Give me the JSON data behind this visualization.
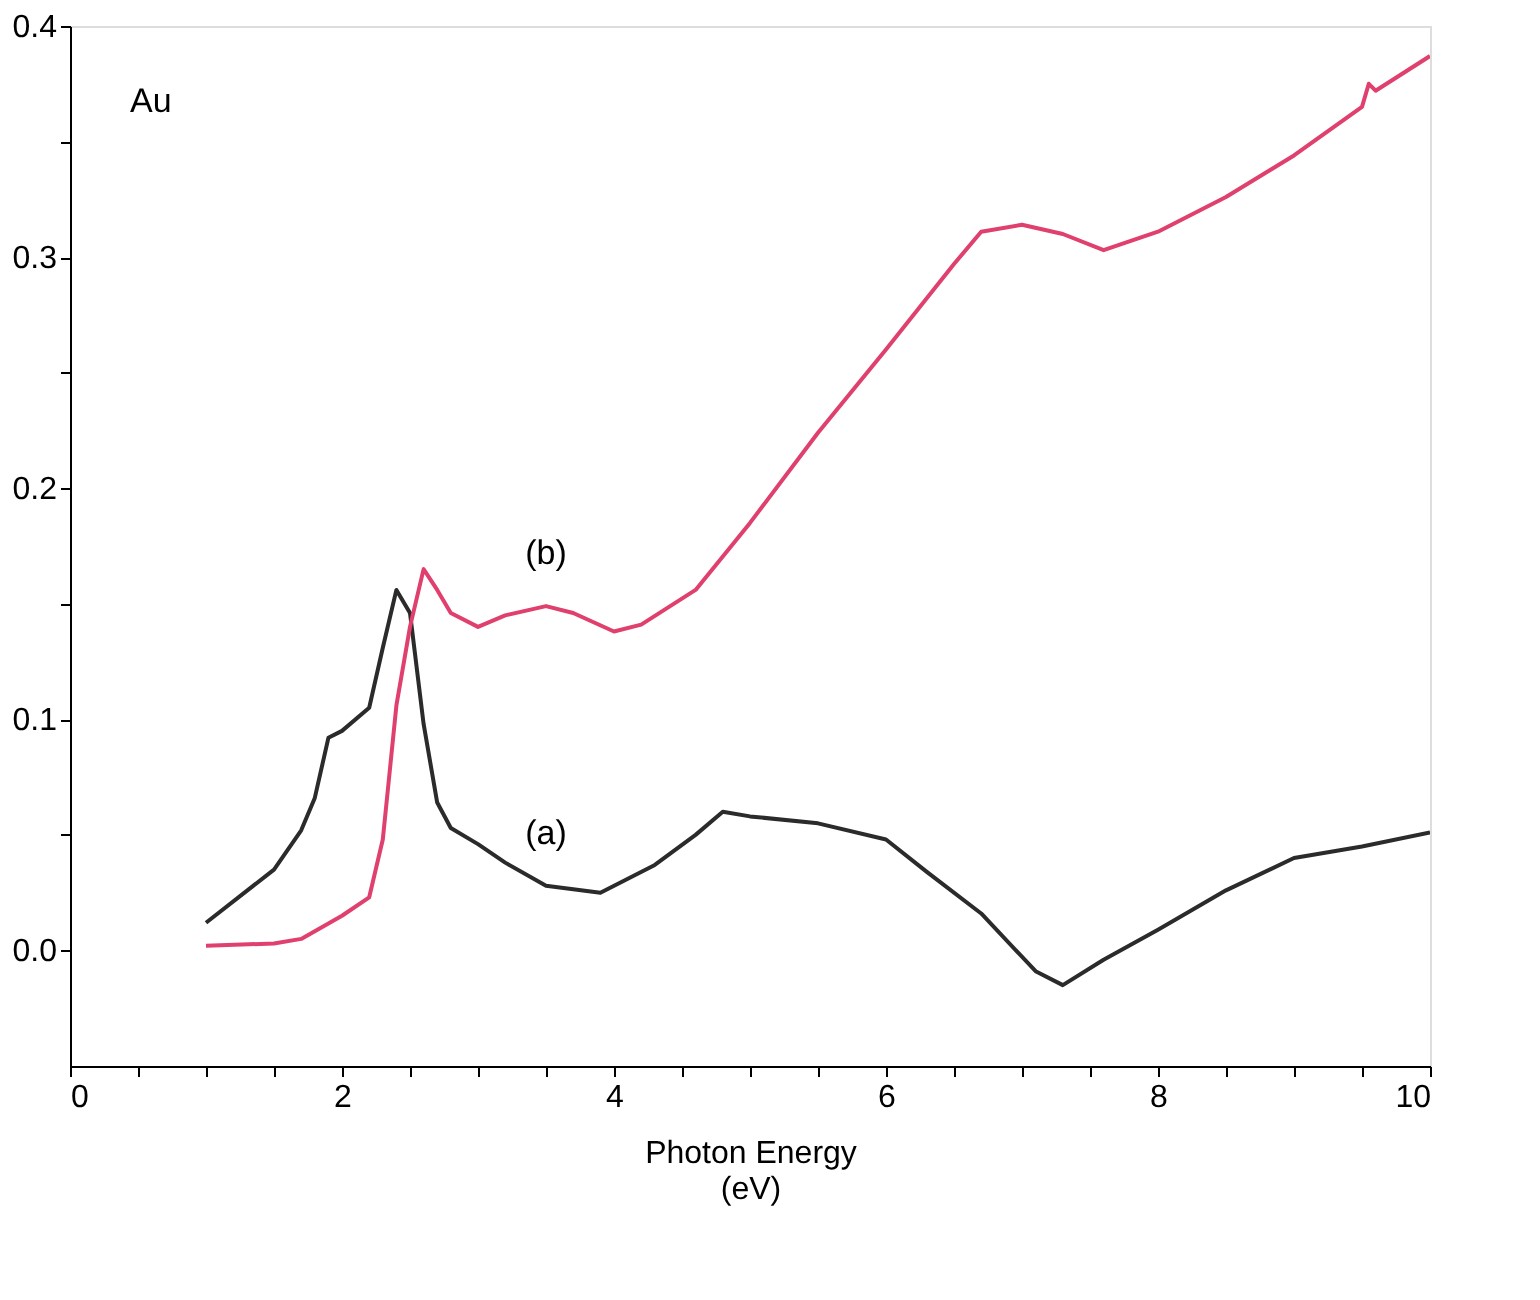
{
  "chart_data": {
    "type": "line",
    "xlabel": "Photon Energy\n(eV)",
    "xlim": [
      0,
      10
    ],
    "ylim": [
      -0.05,
      0.4
    ],
    "xticks": [
      0,
      {
        "value": 0.5,
        "label": null
      },
      {
        "value": 1,
        "label": null
      },
      {
        "value": 1.5,
        "label": null
      },
      2,
      {
        "value": 2.5,
        "label": null
      },
      {
        "value": 3,
        "label": null
      },
      {
        "value": 3.5,
        "label": null
      },
      4,
      {
        "value": 4.5,
        "label": null
      },
      {
        "value": 5,
        "label": null
      },
      {
        "value": 5.5,
        "label": null
      },
      6,
      {
        "value": 6.5,
        "label": null
      },
      {
        "value": 7,
        "label": null
      },
      {
        "value": 7.5,
        "label": null
      },
      8,
      {
        "value": 8.5,
        "label": null
      },
      {
        "value": 9,
        "label": null
      },
      {
        "value": 9.5,
        "label": null
      },
      10
    ],
    "yticks": [
      {
        "value": 0,
        "label": "0.0"
      },
      {
        "value": 0.05,
        "label": null
      },
      0.1,
      {
        "value": 0.15,
        "label": null
      },
      0.2,
      {
        "value": 0.25,
        "label": null
      },
      0.3,
      {
        "value": 0.35,
        "label": null
      },
      0.4
    ],
    "marker": "none",
    "line_style": "solid",
    "series": [
      {
        "name": "(a)",
        "color": "#2b2b2b",
        "x": [
          1.0,
          1.5,
          1.7,
          1.8,
          1.9,
          2.0,
          2.2,
          2.3,
          2.4,
          2.5,
          2.6,
          2.7,
          2.8,
          3.0,
          3.2,
          3.5,
          3.9,
          4.3,
          4.6,
          4.8,
          5.0,
          5.5,
          6.0,
          6.3,
          6.7,
          7.1,
          7.3,
          7.6,
          8.0,
          8.5,
          9.0,
          9.5,
          10.0
        ],
        "values": [
          0.012,
          0.035,
          0.052,
          0.066,
          0.092,
          0.095,
          0.105,
          0.131,
          0.156,
          0.146,
          0.098,
          0.064,
          0.053,
          0.046,
          0.038,
          0.028,
          0.025,
          0.037,
          0.05,
          0.06,
          0.058,
          0.055,
          0.048,
          0.034,
          0.016,
          -0.009,
          -0.015,
          -0.004,
          0.009,
          0.026,
          0.04,
          0.045,
          0.051
        ]
      },
      {
        "name": "(b)",
        "color": "#e0406e",
        "x": [
          1.0,
          1.5,
          1.7,
          2.0,
          2.2,
          2.3,
          2.4,
          2.5,
          2.6,
          2.7,
          2.8,
          3.0,
          3.2,
          3.5,
          3.7,
          4.0,
          4.2,
          4.6,
          5.0,
          5.5,
          6.0,
          6.5,
          6.7,
          7.0,
          7.3,
          7.6,
          8.0,
          8.5,
          9.0,
          9.5,
          9.55,
          9.6,
          10.0
        ],
        "values": [
          0.002,
          0.003,
          0.005,
          0.015,
          0.023,
          0.048,
          0.106,
          0.14,
          0.165,
          0.156,
          0.146,
          0.14,
          0.145,
          0.149,
          0.146,
          0.138,
          0.141,
          0.156,
          0.185,
          0.224,
          0.26,
          0.297,
          0.311,
          0.314,
          0.31,
          0.303,
          0.311,
          0.326,
          0.344,
          0.365,
          0.375,
          0.372,
          0.387
        ]
      }
    ],
    "annotations": [
      "Au"
    ]
  }
}
